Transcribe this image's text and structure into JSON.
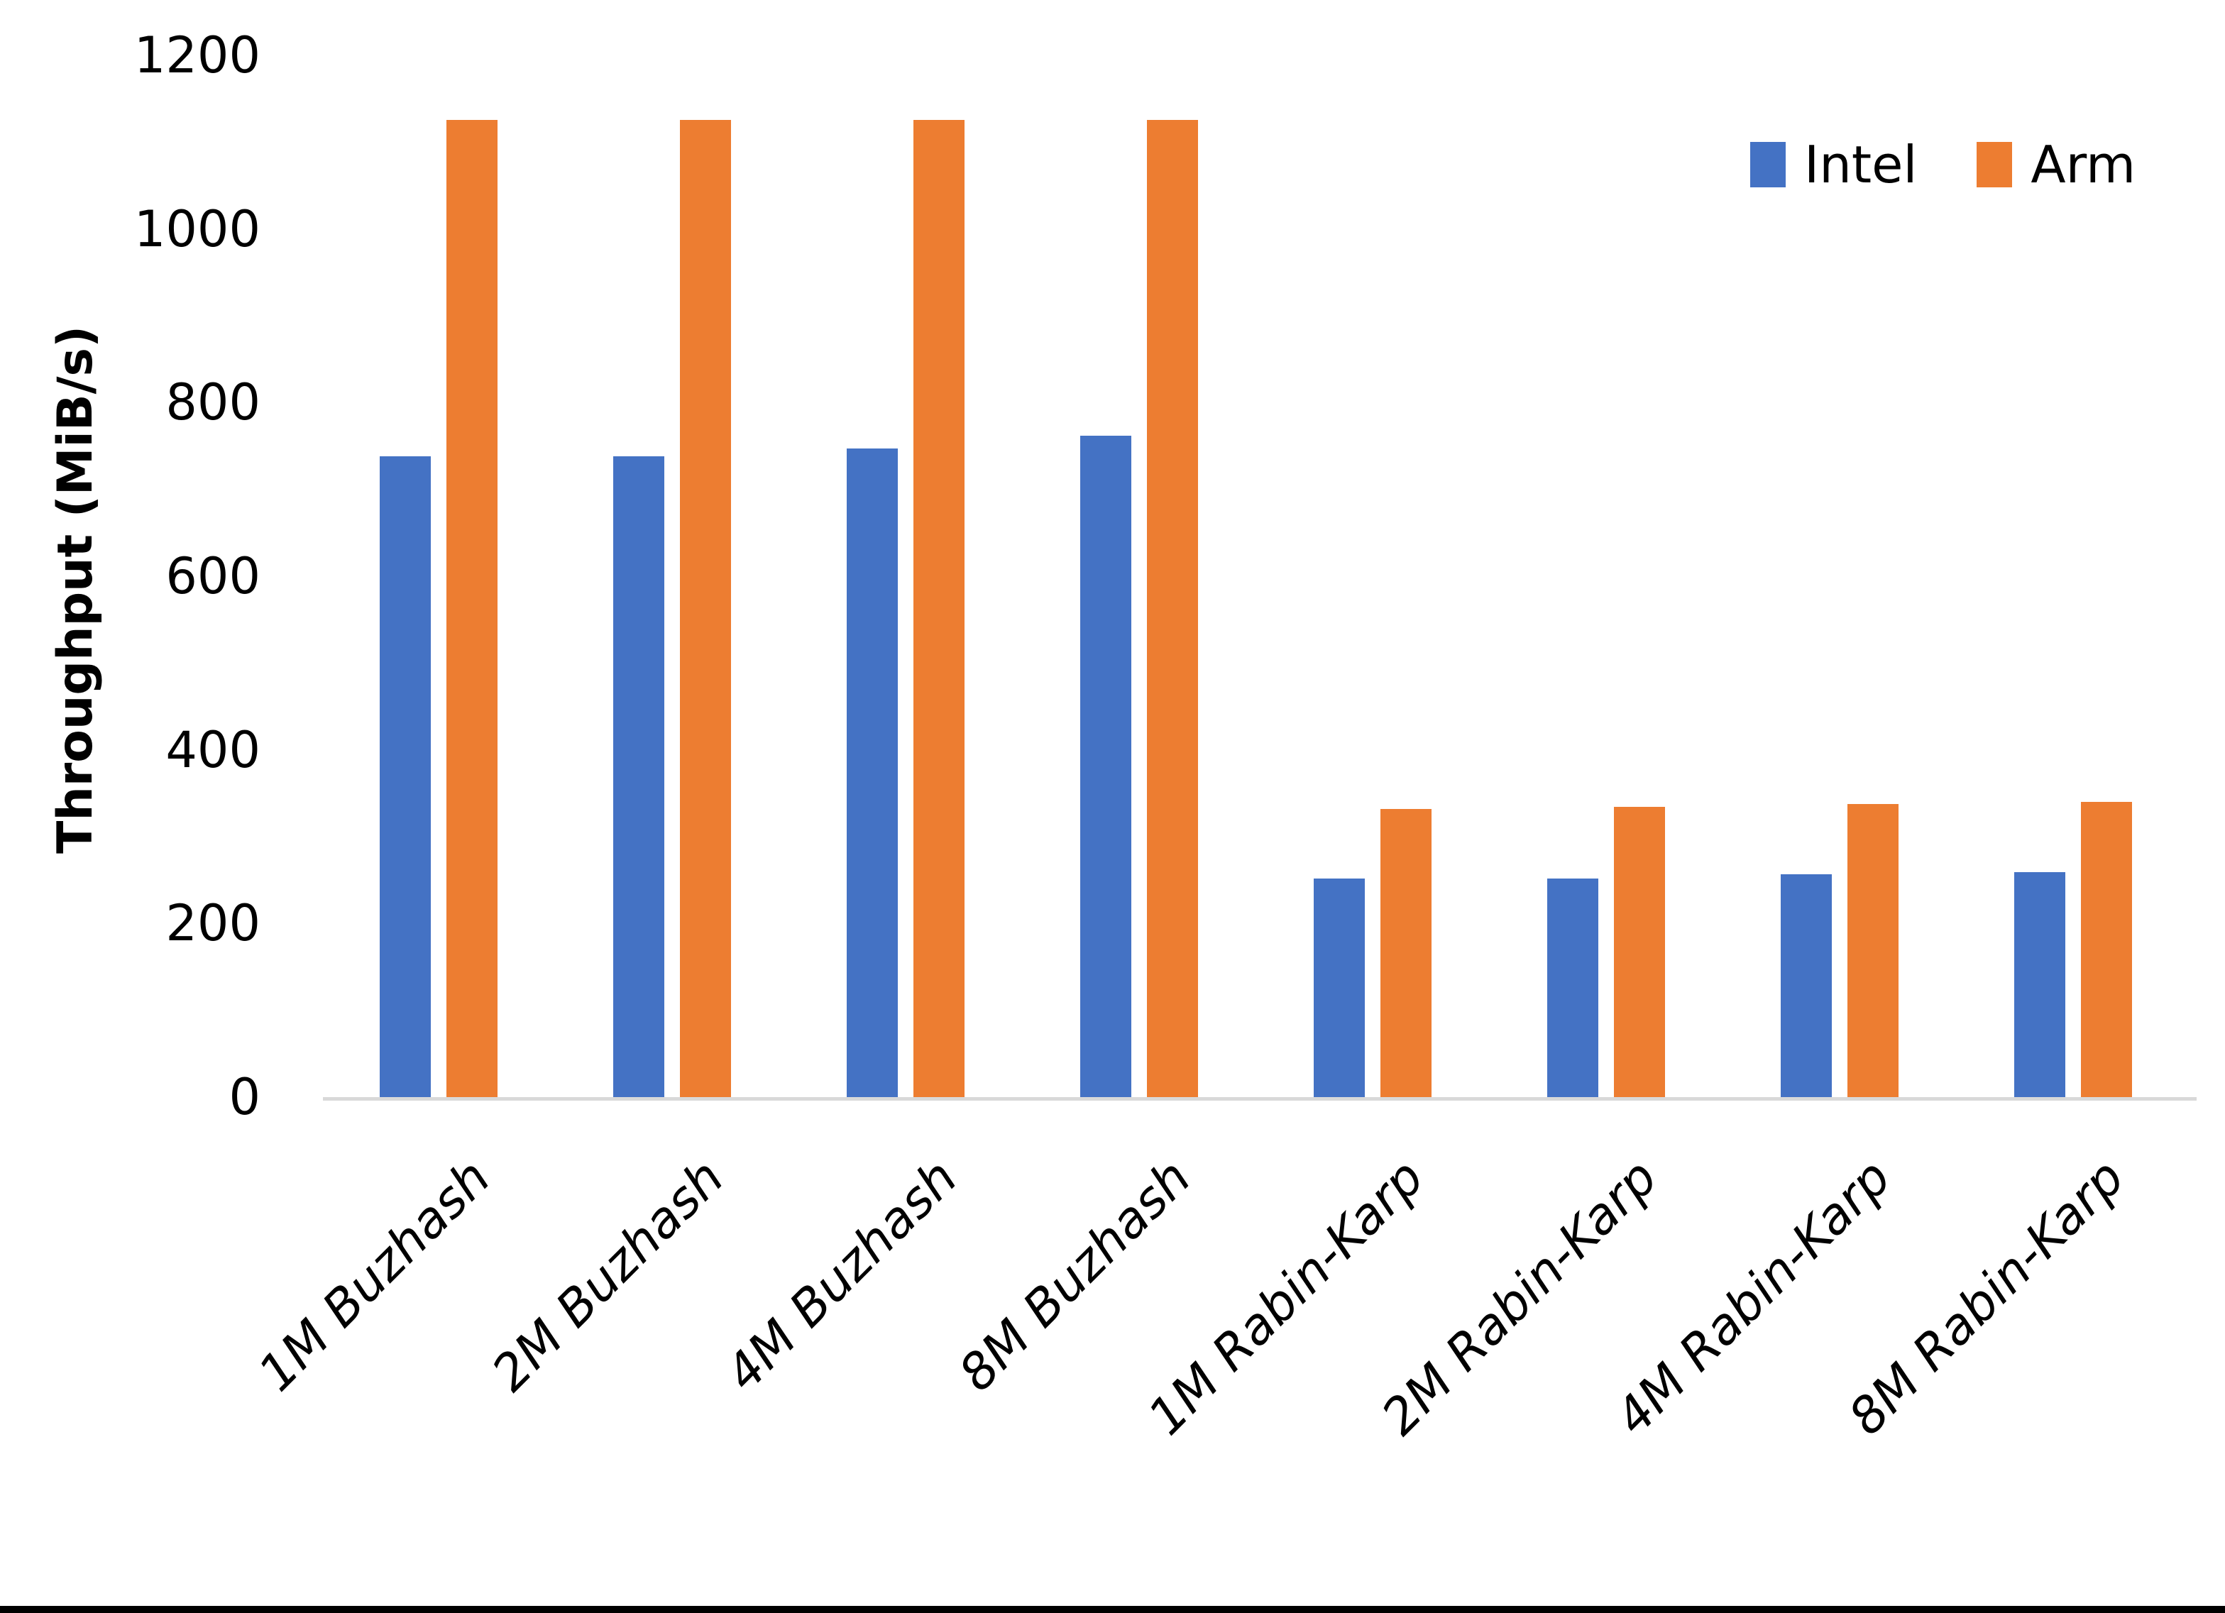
{
  "page": {
    "background": "#FFFFFF",
    "bottom_border_color": "#000000"
  },
  "chart_data": {
    "type": "bar",
    "title": "",
    "xlabel": "",
    "ylabel": "Throughput (MiB/s)",
    "categories": [
      "1M Buzhash",
      "2M Buzhash",
      "4M Buzhash",
      "8M Buzhash",
      "1M Rabin-Karp",
      "2M Rabin-Karp",
      "4M Rabin-Karp",
      "8M Rabin-Karp"
    ],
    "series": [
      {
        "name": "Intel",
        "color": "#4472C4",
        "values": [
          738,
          738,
          747,
          762,
          252,
          252,
          257,
          259
        ]
      },
      {
        "name": "Arm",
        "color": "#ED7D31",
        "values": [
          1126,
          1126,
          1126,
          1126,
          332,
          334,
          338,
          340
        ]
      }
    ],
    "ylim": [
      0,
      1200
    ],
    "yticks": [
      0,
      200,
      400,
      600,
      800,
      1000,
      1200
    ],
    "grid": false,
    "legend_position": "top-right",
    "axis_line_color": "#D9D9D9",
    "text_color": "#000000"
  }
}
